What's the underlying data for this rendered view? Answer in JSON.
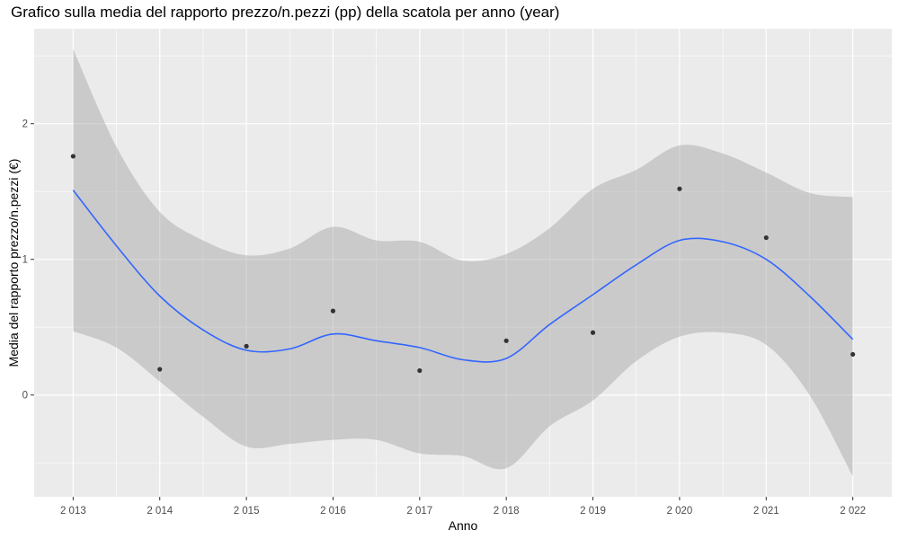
{
  "chart_data": {
    "type": "scatter",
    "title": "Grafico sulla media del rapporto prezzo/n.pezzi (pp) della scatola per anno (year)",
    "xlabel": "Anno",
    "ylabel": "Media del rapporto prezzo/n.pezzi (€)",
    "x_ticks": [
      "2 013",
      "2 014",
      "2 015",
      "2 016",
      "2 017",
      "2 018",
      "2 019",
      "2 020",
      "2 021",
      "2 022"
    ],
    "y_ticks": [
      "0",
      "1",
      "2"
    ],
    "xlim": [
      2012.55,
      2022.45
    ],
    "ylim": [
      -0.75,
      2.7
    ],
    "grid": true,
    "colors": {
      "panel": "#ebebeb",
      "grid": "#ffffff",
      "points": "#333333",
      "smooth": "#3366ff",
      "ribbon": "#999999"
    },
    "points": [
      {
        "x": 2013,
        "y": 1.76
      },
      {
        "x": 2014,
        "y": 0.19
      },
      {
        "x": 2015,
        "y": 0.36
      },
      {
        "x": 2016,
        "y": 0.62
      },
      {
        "x": 2017,
        "y": 0.18
      },
      {
        "x": 2018,
        "y": 0.4
      },
      {
        "x": 2019,
        "y": 0.46
      },
      {
        "x": 2020,
        "y": 1.52
      },
      {
        "x": 2021,
        "y": 1.16
      },
      {
        "x": 2022,
        "y": 0.3
      }
    ],
    "smooth": {
      "x": [
        2013,
        2013.5,
        2014,
        2014.5,
        2015,
        2015.5,
        2016,
        2016.5,
        2017,
        2017.5,
        2018,
        2018.5,
        2019,
        2019.5,
        2020,
        2020.5,
        2021,
        2021.5,
        2022
      ],
      "y": [
        1.51,
        1.1,
        0.73,
        0.48,
        0.33,
        0.34,
        0.45,
        0.4,
        0.35,
        0.26,
        0.27,
        0.52,
        0.74,
        0.96,
        1.14,
        1.13,
        1.0,
        0.73,
        0.41
      ],
      "upper": [
        2.55,
        1.83,
        1.35,
        1.14,
        1.03,
        1.08,
        1.24,
        1.14,
        1.13,
        0.99,
        1.04,
        1.23,
        1.52,
        1.66,
        1.84,
        1.78,
        1.64,
        1.49,
        1.46
      ],
      "lower": [
        0.47,
        0.35,
        0.1,
        -0.16,
        -0.38,
        -0.36,
        -0.33,
        -0.33,
        -0.43,
        -0.45,
        -0.54,
        -0.23,
        -0.04,
        0.25,
        0.43,
        0.46,
        0.37,
        0.0,
        -0.6
      ]
    }
  }
}
